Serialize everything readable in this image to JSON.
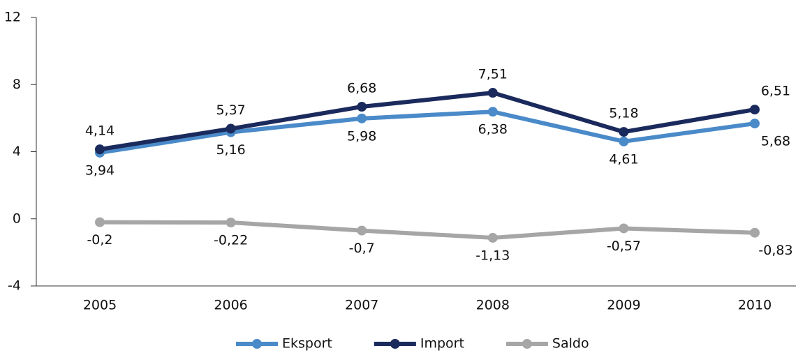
{
  "chart_data": {
    "type": "line",
    "categories": [
      "2005",
      "2006",
      "2007",
      "2008",
      "2009",
      "2010"
    ],
    "series": [
      {
        "name": "Eksport",
        "color": "#4a8ac9",
        "values": [
          3.94,
          5.16,
          5.98,
          6.38,
          4.61,
          5.68
        ],
        "value_labels": [
          "3,94",
          "5,16",
          "5,98",
          "6,38",
          "4,61",
          "5,68"
        ]
      },
      {
        "name": "Import",
        "color": "#1b2a5c",
        "values": [
          4.14,
          5.37,
          6.68,
          7.51,
          5.18,
          6.51
        ],
        "value_labels": [
          "4,14",
          "5,37",
          "6,68",
          "7,51",
          "5,18",
          "6,51"
        ]
      },
      {
        "name": "Saldo",
        "color": "#a6a6a6",
        "values": [
          -0.2,
          -0.22,
          -0.7,
          -1.13,
          -0.57,
          -0.83
        ],
        "value_labels": [
          "-0,2",
          "-0,22",
          "-0,7",
          "-1,13",
          "-0,57",
          "-0,83"
        ]
      }
    ],
    "ylim": [
      -4,
      12
    ],
    "yticks": [
      -4,
      0,
      4,
      8,
      12
    ],
    "grid": false,
    "legend": "bottom"
  }
}
